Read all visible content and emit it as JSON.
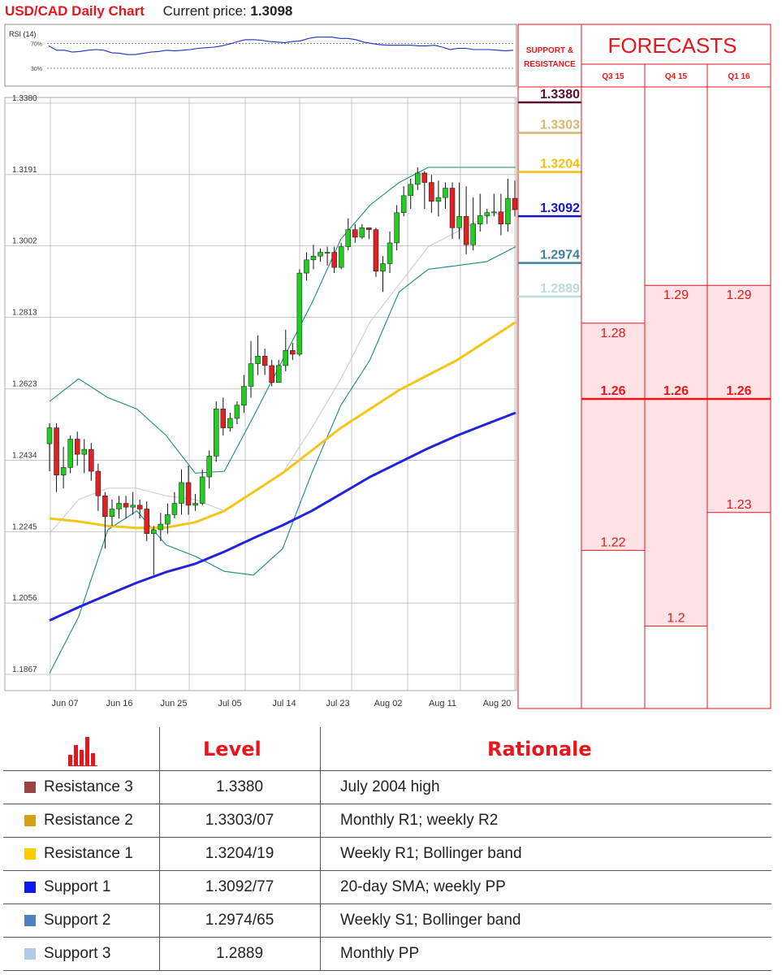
{
  "header": {
    "title": "USD/CAD Daily Chart",
    "price_label": "Current price:",
    "price": "1.3098"
  },
  "colors": {
    "red": "#e8161b",
    "up_candle": "#22cc22",
    "down_candle": "#dd2222",
    "sma50": "#f5c518",
    "sma200": "#2222dd",
    "bollinger": "#1a8a80",
    "sma20": "#c8c8c8",
    "rsi_line": "#1f2dcc",
    "forecast_fill": "#fde3e5"
  },
  "chart_data": [
    {
      "type": "line",
      "title": "RSI (14)",
      "ylim": [
        0,
        100
      ],
      "y_ticks": [
        "70%",
        "30%"
      ],
      "series": [
        {
          "values": [
            66,
            59,
            59,
            56,
            57,
            59,
            60,
            59,
            55,
            54,
            52,
            52,
            54,
            56,
            57,
            59,
            58,
            59,
            60,
            62,
            63,
            64,
            66,
            69,
            73,
            76,
            76,
            75,
            73,
            72,
            71,
            73,
            74,
            78,
            80,
            80,
            80,
            78,
            78,
            76,
            72,
            70,
            68,
            67,
            67,
            67,
            67,
            66,
            66,
            67,
            64,
            60,
            62,
            62,
            60,
            60,
            60,
            59,
            58,
            59
          ]
        }
      ]
    },
    {
      "type": "candlestick",
      "title": "USD/CAD Daily Chart",
      "x_ticks": [
        "Jun 07",
        "Jun 16",
        "Jun 25",
        "Jul 05",
        "Jul 14",
        "Jul 23",
        "Aug 02",
        "Aug 11",
        "Aug 20"
      ],
      "y_ticks": [
        "1.3380",
        "1.3191",
        "1.3002",
        "1.2813",
        "1.2623",
        "1.2434",
        "1.2245",
        "1.2056",
        "1.1867"
      ],
      "ylim": [
        1.1867,
        1.338
      ],
      "candles": [
        [
          1.2478,
          1.252,
          1.2532,
          1.2405
        ],
        [
          1.252,
          1.2395,
          1.2532,
          1.235
        ],
        [
          1.2395,
          1.2415,
          1.247,
          1.236
        ],
        [
          1.2415,
          1.249,
          1.25,
          1.24
        ],
        [
          1.249,
          1.245,
          1.251,
          1.242
        ],
        [
          1.245,
          1.2463,
          1.249,
          1.24
        ],
        [
          1.2463,
          1.2405,
          1.248,
          1.238
        ],
        [
          1.2405,
          1.234,
          1.2425,
          1.23
        ],
        [
          1.234,
          1.2285,
          1.235,
          1.22
        ],
        [
          1.2285,
          1.2305,
          1.233,
          1.226
        ],
        [
          1.2305,
          1.232,
          1.234,
          1.228
        ],
        [
          1.232,
          1.231,
          1.234,
          1.228
        ],
        [
          1.231,
          1.2315,
          1.235,
          1.229
        ],
        [
          1.2315,
          1.2305,
          1.233,
          1.228
        ],
        [
          1.2305,
          1.224,
          1.2325,
          1.222
        ],
        [
          1.224,
          1.225,
          1.226,
          1.213
        ],
        [
          1.225,
          1.2265,
          1.2295,
          1.222
        ],
        [
          1.2265,
          1.229,
          1.232,
          1.224
        ],
        [
          1.229,
          1.232,
          1.235,
          1.228
        ],
        [
          1.232,
          1.2375,
          1.241,
          1.229
        ],
        [
          1.2375,
          1.2315,
          1.242,
          1.229
        ],
        [
          1.2315,
          1.232,
          1.2345,
          1.23
        ],
        [
          1.232,
          1.239,
          1.241,
          1.2315
        ],
        [
          1.239,
          1.2445,
          1.246,
          1.236
        ],
        [
          1.2445,
          1.257,
          1.259,
          1.243
        ],
        [
          1.257,
          1.252,
          1.26,
          1.25
        ],
        [
          1.252,
          1.2545,
          1.256,
          1.251
        ],
        [
          1.2545,
          1.258,
          1.259,
          1.253
        ],
        [
          1.258,
          1.263,
          1.266,
          1.256
        ],
        [
          1.263,
          1.269,
          1.275,
          1.26
        ],
        [
          1.269,
          1.271,
          1.2765,
          1.266
        ],
        [
          1.271,
          1.2685,
          1.273,
          1.266
        ],
        [
          1.2685,
          1.264,
          1.27,
          1.263
        ],
        [
          1.264,
          1.2685,
          1.27,
          1.264
        ],
        [
          1.2685,
          1.2725,
          1.278,
          1.267
        ],
        [
          1.2725,
          1.2715,
          1.2745,
          1.27
        ],
        [
          1.2715,
          1.293,
          1.294,
          1.271
        ],
        [
          1.293,
          1.2965,
          1.2985,
          1.291
        ],
        [
          1.2965,
          1.2975,
          1.3005,
          1.294
        ],
        [
          1.2975,
          1.2985,
          1.2995,
          1.296
        ],
        [
          1.2985,
          1.2985,
          1.3,
          1.295
        ],
        [
          1.2985,
          1.2945,
          1.3,
          1.293
        ],
        [
          1.2945,
          1.3,
          1.301,
          1.294
        ],
        [
          1.3,
          1.3045,
          1.3075,
          1.299
        ],
        [
          1.3045,
          1.3025,
          1.306,
          1.301
        ],
        [
          1.3025,
          1.305,
          1.306,
          1.302
        ],
        [
          1.305,
          1.3045,
          1.305,
          1.302
        ],
        [
          1.3045,
          1.2935,
          1.305,
          1.292
        ],
        [
          1.2935,
          1.2955,
          1.2975,
          1.288
        ],
        [
          1.2955,
          1.301,
          1.304,
          1.293
        ],
        [
          1.301,
          1.309,
          1.311,
          1.299
        ],
        [
          1.309,
          1.3135,
          1.316,
          1.308
        ],
        [
          1.3135,
          1.3165,
          1.318,
          1.31
        ],
        [
          1.3165,
          1.3195,
          1.321,
          1.315
        ],
        [
          1.3195,
          1.317,
          1.32,
          1.31
        ],
        [
          1.317,
          1.312,
          1.319,
          1.309
        ],
        [
          1.312,
          1.313,
          1.3175,
          1.308
        ],
        [
          1.313,
          1.3155,
          1.317,
          1.31
        ],
        [
          1.3155,
          1.305,
          1.317,
          1.302
        ],
        [
          1.305,
          1.308,
          1.317,
          1.302
        ],
        [
          1.308,
          1.3005,
          1.316,
          1.298
        ],
        [
          1.3005,
          1.306,
          1.313,
          1.299
        ],
        [
          1.306,
          1.3082,
          1.314,
          1.304
        ],
        [
          1.3082,
          1.309,
          1.31,
          1.306
        ],
        [
          1.309,
          1.3092,
          1.314,
          1.308
        ],
        [
          1.3092,
          1.306,
          1.314,
          1.303
        ],
        [
          1.306,
          1.3128,
          1.318,
          1.304
        ],
        [
          1.3128,
          1.3098,
          1.3175,
          1.308
        ]
      ],
      "series": [
        {
          "name": "SMA 50",
          "values": [
            1.228,
            1.2272,
            1.226,
            1.2255,
            1.2256,
            1.227,
            1.23,
            1.235,
            1.24,
            1.246,
            1.252,
            1.257,
            1.262,
            1.266,
            1.27,
            1.275,
            1.28
          ]
        },
        {
          "name": "SMA 200",
          "values": [
            1.201,
            1.2045,
            1.2078,
            1.211,
            1.2138,
            1.216,
            1.2192,
            1.2228,
            1.2262,
            1.23,
            1.2345,
            1.239,
            1.2428,
            1.2466,
            1.25,
            1.253,
            1.256
          ]
        },
        {
          "name": "Bollinger upper",
          "values": [
            1.259,
            1.265,
            1.26,
            1.257,
            1.25,
            1.24,
            1.2405,
            1.255,
            1.27,
            1.285,
            1.302,
            1.311,
            1.317,
            1.321,
            1.321,
            1.321,
            1.321
          ]
        },
        {
          "name": "Bollinger lower",
          "values": [
            1.187,
            1.202,
            1.225,
            1.23,
            1.221,
            1.218,
            1.214,
            1.213,
            1.22,
            1.24,
            1.258,
            1.27,
            1.288,
            1.294,
            1.295,
            1.296,
            1.3
          ]
        },
        {
          "name": "SMA 20",
          "values": [
            1.224,
            1.233,
            1.236,
            1.236,
            1.234,
            1.233,
            1.23,
            1.235,
            1.24,
            1.252,
            1.265,
            1.28,
            1.29,
            1.3,
            1.304,
            1.308,
            1.31
          ]
        }
      ]
    }
  ],
  "sr_panel": {
    "title": "SUPPORT & RESISTANCE",
    "levels": [
      {
        "label": "1.3380",
        "value": 1.338,
        "color": "#5a0e30"
      },
      {
        "label": "1.3303",
        "value": 1.3303,
        "color": "#d8b870"
      },
      {
        "label": "1.3204",
        "value": 1.3204,
        "color": "#f3c011"
      },
      {
        "label": "1.3092",
        "value": 1.3092,
        "color": "#1515cc"
      },
      {
        "label": "1.2974",
        "value": 1.2974,
        "color": "#3f7fa0"
      },
      {
        "label": "1.2889",
        "value": 1.2889,
        "color": "#b8dcdc"
      }
    ]
  },
  "forecasts": {
    "title": "FORECASTS",
    "columns": [
      {
        "label": "Q3 15",
        "max": "1.28",
        "max_value": 1.28,
        "median": "1.26",
        "median_value": 1.26,
        "min": "1.22",
        "min_value": 1.22
      },
      {
        "label": "Q4 15",
        "max": "1.29",
        "max_value": 1.29,
        "median": "1.26",
        "median_value": 1.26,
        "min": "1.2",
        "min_value": 1.2
      },
      {
        "label": "Q1 16",
        "max": "1.29",
        "max_value": 1.29,
        "median": "1.26",
        "median_value": 1.26,
        "min": "1.23",
        "min_value": 1.23
      }
    ]
  },
  "table": {
    "icon": "bar-chart-icon",
    "headers": {
      "level": "Level",
      "rationale": "Rationale"
    },
    "rows": [
      {
        "name": "Resistance 3",
        "level": "1.3380",
        "rationale": "July 2004 high",
        "color": "#994444"
      },
      {
        "name": "Resistance 2",
        "level": "1.3303/07",
        "rationale": "Monthly R1; weekly R2",
        "color": "#d4a017"
      },
      {
        "name": "Resistance 1",
        "level": "1.3204/19",
        "rationale": "Weekly R1; Bollinger band",
        "color": "#ffcc00"
      },
      {
        "name": "Support 1",
        "level": "1.3092/77",
        "rationale": "20-day SMA; weekly PP",
        "color": "#0a1ae8"
      },
      {
        "name": "Support 2",
        "level": "1.2974/65",
        "rationale": "Weekly S1; Bollinger band",
        "color": "#4f80c0"
      },
      {
        "name": "Support 3",
        "level": "1.2889",
        "rationale": "Monthly PP",
        "color": "#b4c8e8"
      }
    ]
  }
}
